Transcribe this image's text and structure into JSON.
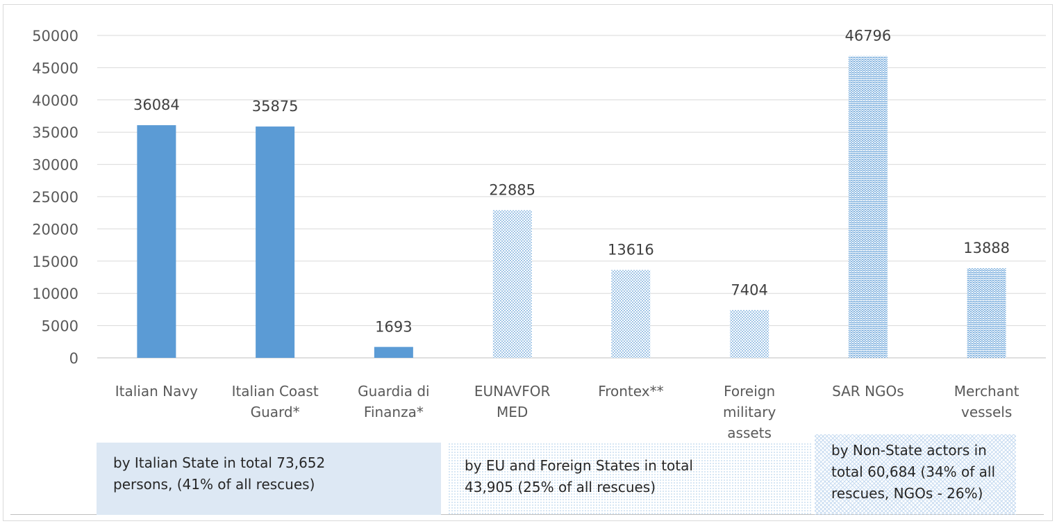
{
  "chart_data": {
    "type": "bar",
    "categories": [
      "Italian Navy",
      "Italian Coast Guard*",
      "Guardia di Finanza*",
      "EUNAVFOR MED",
      "Frontex**",
      "Foreign military assets",
      "SAR NGOs",
      "Merchant vessels"
    ],
    "category_lines": [
      [
        "Italian Navy"
      ],
      [
        "Italian Coast",
        "Guard*"
      ],
      [
        "Guardia di",
        "Finanza*"
      ],
      [
        "EUNAVFOR",
        "MED"
      ],
      [
        "Frontex**"
      ],
      [
        "Foreign",
        "military",
        "assets"
      ],
      [
        "SAR NGOs"
      ],
      [
        "Merchant",
        "vessels"
      ]
    ],
    "values": [
      36084,
      35875,
      1693,
      22885,
      13616,
      7404,
      46796,
      13888
    ],
    "value_labels": [
      "36084",
      "35875",
      "1693",
      "22885",
      "13616",
      "7404",
      "46796",
      "13888"
    ],
    "fill_styles": [
      "solid",
      "solid",
      "solid",
      "dotted",
      "dotted",
      "dotted",
      "wave",
      "wave"
    ],
    "colors": {
      "bar": "#5b9bd5",
      "pattern_bg": "#ffffff",
      "grid": "#d9d9d9",
      "axis": "#bfbfbf",
      "italian_box": "#dde8f4"
    },
    "ylim": [
      0,
      50000
    ],
    "yticks": [
      0,
      5000,
      10000,
      15000,
      20000,
      25000,
      30000,
      35000,
      40000,
      45000,
      50000
    ],
    "ytick_labels": [
      "0",
      "5000",
      "10000",
      "15000",
      "20000",
      "25000",
      "30000",
      "35000",
      "40000",
      "45000",
      "50000"
    ],
    "grid": true,
    "title": "",
    "xlabel": "",
    "ylabel": "",
    "groups": [
      {
        "lines": [
          "by Italian State in total 73,652",
          "persons, (41% of all rescues)"
        ],
        "fill": "solid-light"
      },
      {
        "lines": [
          "by EU and Foreign States in total",
          "43,905 (25% of all rescues)"
        ],
        "fill": "dotted"
      },
      {
        "lines": [
          "by Non-State actors  in",
          "total 60,684  (34% of all",
          "rescues, NGOs - 26%)"
        ],
        "fill": "wave"
      }
    ]
  }
}
